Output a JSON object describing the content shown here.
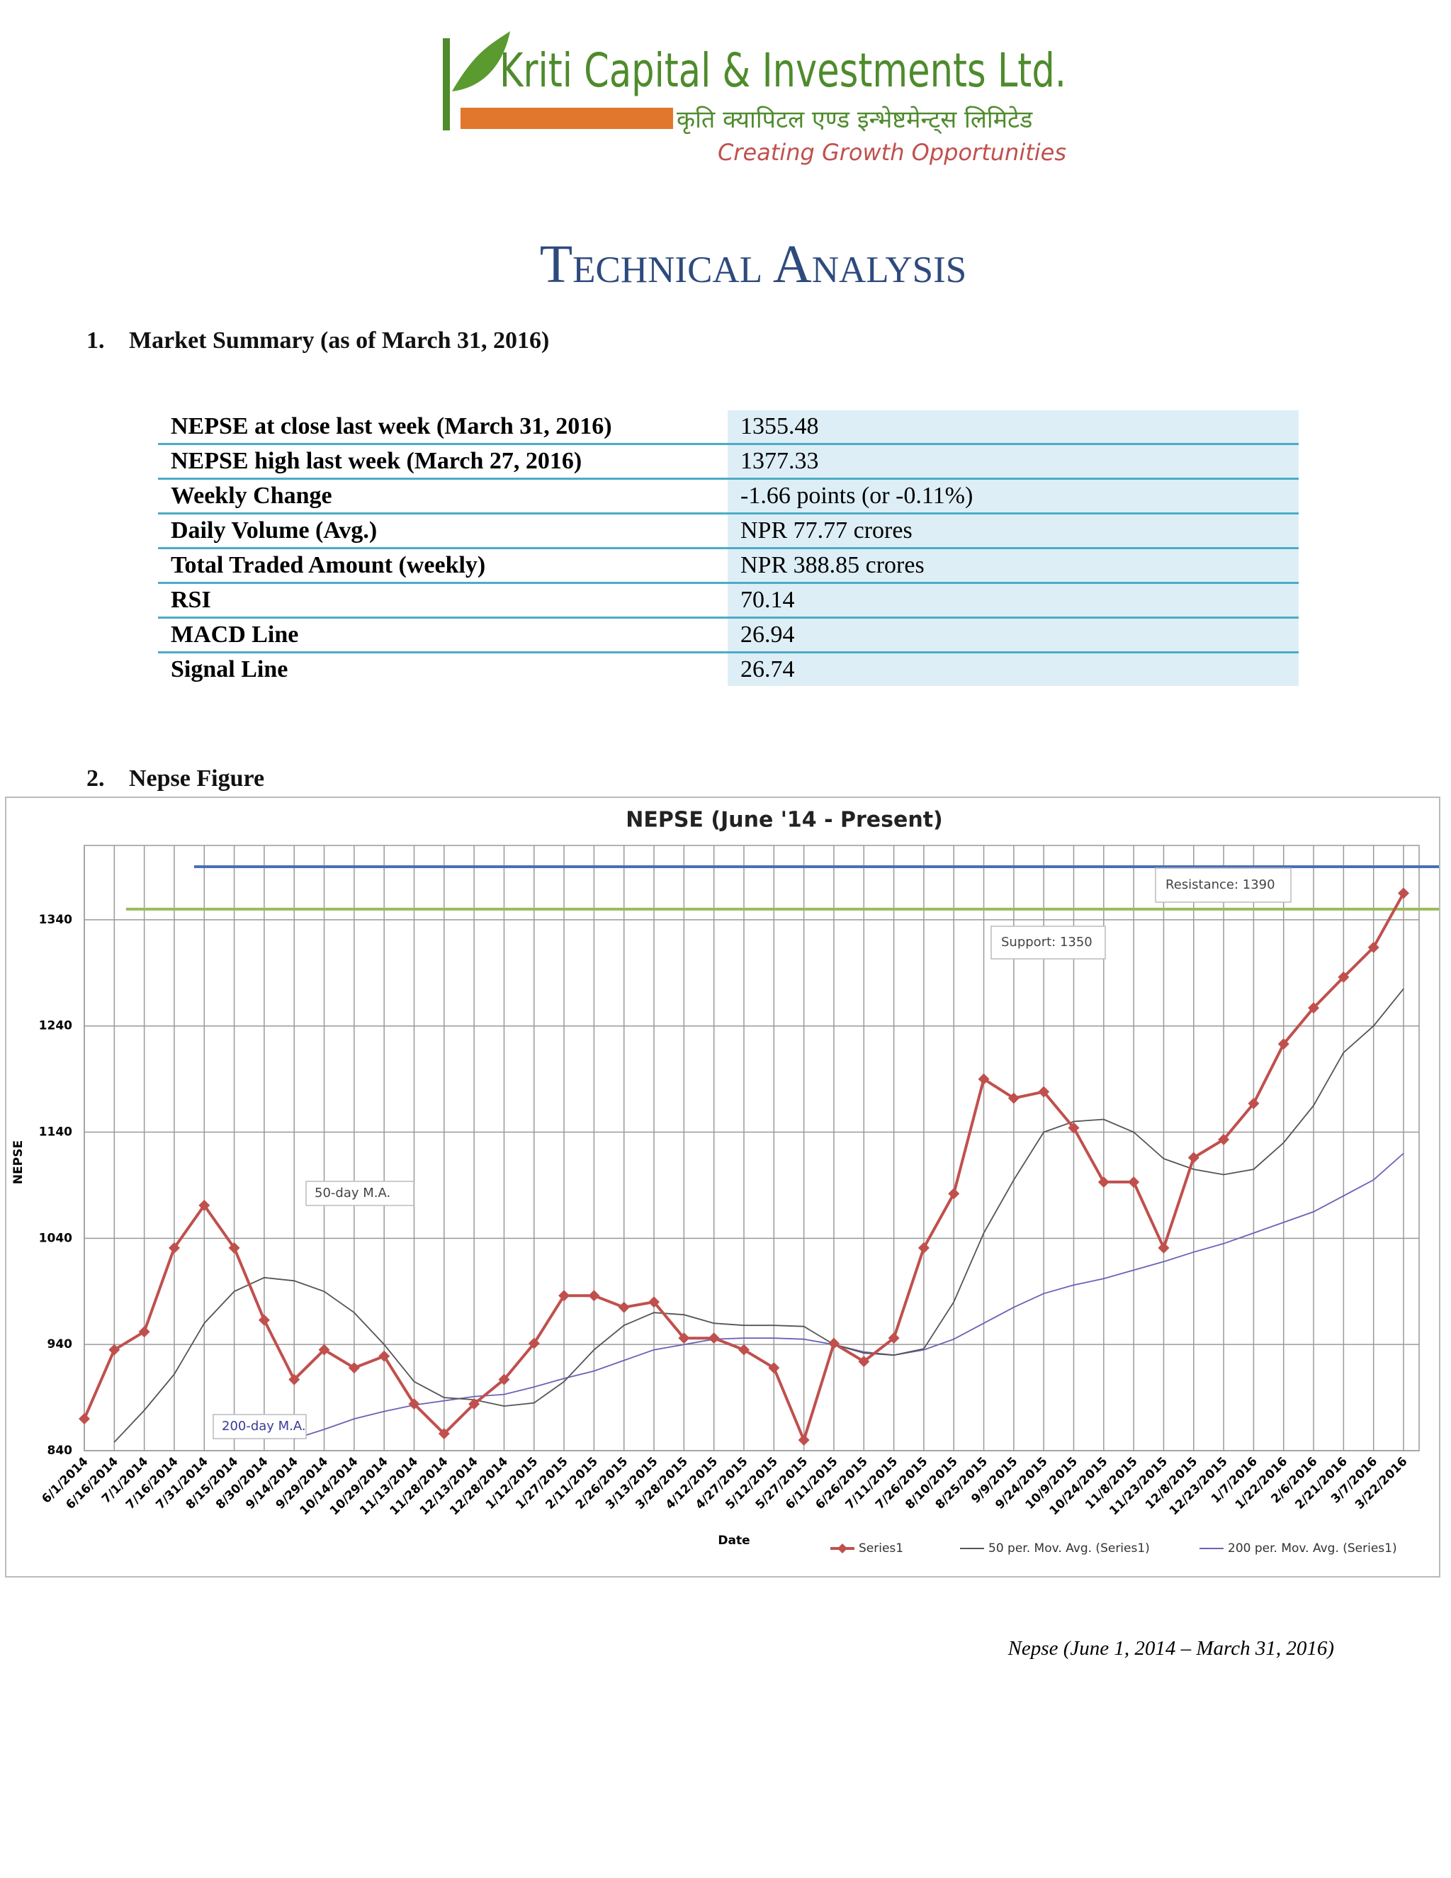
{
  "header": {
    "logo_name": "Kriti Capital & Investments Ltd.",
    "logo_native": "कृति क्यापिटल एण्ड इन्भेष्टमेन्ट्स लिमिटेड",
    "logo_tagline": "Creating Growth Opportunities",
    "title": "Technical Analysis"
  },
  "sections": [
    "1.",
    "Market Summary (as of March 31, 2016)",
    "2.",
    "Nepse Figure"
  ],
  "table": {
    "rows": [
      [
        "NEPSE at close last week (March 31, 2016)",
        "1355.48"
      ],
      [
        "NEPSE high last week (March 27, 2016)",
        "1377.33"
      ],
      [
        "Weekly Change",
        "-1.66 points (or -0.11%)"
      ],
      [
        "Daily Volume (Avg.)",
        "NPR 77.77 crores"
      ],
      [
        "Total Traded Amount (weekly)",
        "NPR 388.85 crores"
      ],
      [
        "RSI",
        "70.14"
      ],
      [
        "MACD Line",
        "26.94"
      ],
      [
        "Signal Line",
        "26.74"
      ]
    ]
  },
  "chart_data": {
    "type": "line",
    "title": "NEPSE (June '14 - Present)",
    "x_label": "Date",
    "y_label": "NEPSE",
    "categories": [
      "6/1/2014",
      "6/16/2014",
      "7/1/2014",
      "7/16/2014",
      "7/31/2014",
      "8/15/2014",
      "8/30/2014",
      "9/14/2014",
      "9/29/2014",
      "10/14/2014",
      "10/29/2014",
      "11/13/2014",
      "11/28/2014",
      "12/13/2014",
      "12/28/2014",
      "1/12/2015",
      "1/27/2015",
      "2/11/2015",
      "2/26/2015",
      "3/13/2015",
      "3/28/2015",
      "4/12/2015",
      "4/27/2015",
      "5/12/2015",
      "5/27/2015",
      "6/11/2015",
      "6/26/2015",
      "7/11/2015",
      "7/26/2015",
      "8/10/2015",
      "8/25/2015",
      "9/9/2015",
      "9/24/2015",
      "10/9/2015",
      "10/24/2015",
      "11/8/2015",
      "11/23/2015",
      "12/8/2015",
      "12/23/2015",
      "1/7/2016",
      "1/22/2016",
      "2/6/2016",
      "2/21/2016",
      "3/7/2016",
      "3/22/2016"
    ],
    "series": [
      {
        "name": "Series1",
        "color": "#c0504d",
        "marker": "diamond",
        "values": [
          870,
          935,
          952,
          1031,
          1071,
          1031,
          963,
          907,
          935,
          918,
          929,
          884,
          856,
          884,
          907,
          941,
          986,
          986,
          975,
          980,
          946,
          946,
          935,
          918,
          850,
          941,
          924,
          946,
          1031,
          1082,
          1190,
          1172,
          1178,
          1144,
          1093,
          1093,
          1031,
          1116,
          1133,
          1167,
          1223,
          1257,
          1286,
          1314,
          1365
        ]
      },
      {
        "name": "50 per. Mov. Avg. (Series1)",
        "color": "#555555",
        "values": [
          null,
          848,
          878,
          912,
          960,
          990,
          1003,
          1000,
          990,
          970,
          940,
          905,
          890,
          888,
          882,
          885,
          905,
          935,
          958,
          970,
          968,
          960,
          958,
          958,
          957,
          940,
          932,
          930,
          936,
          980,
          1045,
          1095,
          1140,
          1150,
          1152,
          1140,
          1115,
          1105,
          1100,
          1105,
          1130,
          1165,
          1215,
          1240,
          1275
        ]
      },
      {
        "name": "200 per. Mov. Avg. (Series1)",
        "color": "#6a62b8",
        "values": [
          null,
          null,
          null,
          null,
          null,
          null,
          null,
          851,
          860,
          870,
          877,
          883,
          887,
          891,
          893,
          900,
          908,
          915,
          925,
          935,
          940,
          945,
          946,
          946,
          945,
          940,
          933,
          930,
          935,
          945,
          960,
          975,
          988,
          996,
          1002,
          1010,
          1018,
          1027,
          1035,
          1045,
          1055,
          1065,
          1080,
          1095,
          1120
        ]
      }
    ],
    "ylim": [
      840,
      1410
    ],
    "yticks": [
      840,
      940,
      1040,
      1140,
      1240,
      1340
    ],
    "grid": true,
    "reference_lines": [
      {
        "label": "Resistance: 1390",
        "value": 1390,
        "color": "#4a6fb5"
      },
      {
        "label": "Support: 1350",
        "value": 1350,
        "color": "#9bbb59"
      }
    ],
    "annotations": [
      "50-day M.A.",
      "200-day M.A."
    ],
    "legend": "bottom"
  },
  "caption": "Nepse (June 1, 2014 – March 31, 2016)"
}
